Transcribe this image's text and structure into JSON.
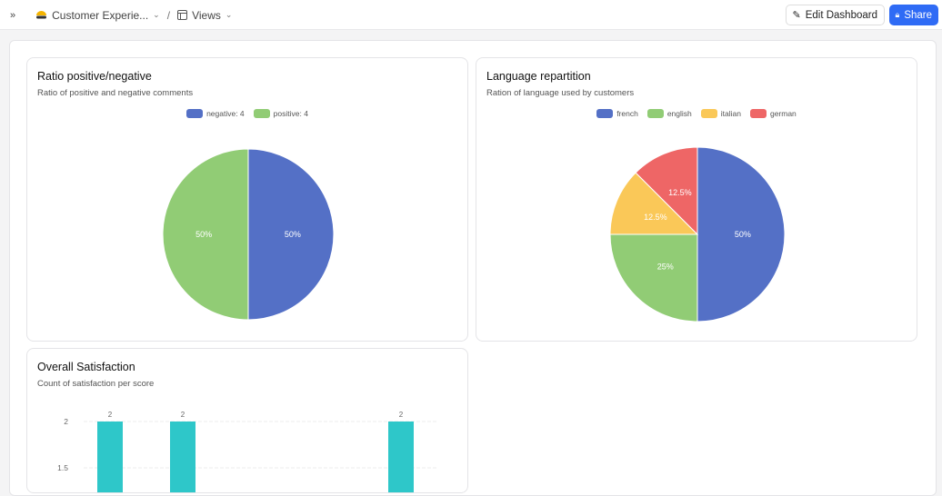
{
  "topbar": {
    "expand_icon": "double-chevron-right",
    "breadcrumb": [
      {
        "label": "Customer Experie...",
        "icon": "base-logo"
      },
      {
        "label": "Views",
        "icon": "table-icon"
      }
    ],
    "separator": "/",
    "edit_label": "Edit Dashboard",
    "share_label": "Share",
    "share_color": "#2f6bf5"
  },
  "cards": [
    {
      "title": "Ratio positive/negative",
      "subtitle": "Ratio of positive and negative comments",
      "chart_data": {
        "type": "pie",
        "legend_position": "top",
        "slices": [
          {
            "label": "negative",
            "legend": "negative: 4",
            "value": 4,
            "percent_label": "50%",
            "color": "#5470c6"
          },
          {
            "label": "positive",
            "legend": "positive: 4",
            "value": 4,
            "percent_label": "50%",
            "color": "#91cc75"
          }
        ]
      }
    },
    {
      "title": "Language repartition",
      "subtitle": "Ration of language used by customers",
      "chart_data": {
        "type": "pie",
        "legend_position": "top",
        "slices": [
          {
            "label": "french",
            "value": 50,
            "percent_label": "50%",
            "color": "#5470c6"
          },
          {
            "label": "english",
            "value": 25,
            "percent_label": "25%",
            "color": "#91cc75"
          },
          {
            "label": "italian",
            "value": 12.5,
            "percent_label": "12.5%",
            "color": "#fac858"
          },
          {
            "label": "german",
            "value": 12.5,
            "percent_label": "12.5%",
            "color": "#ee6666"
          }
        ]
      }
    },
    {
      "title": "Overall Satisfaction",
      "subtitle": "Count of satisfaction per score",
      "chart_data": {
        "type": "bar",
        "color": "#2ec7c9",
        "yticks": [
          "2",
          "1.5"
        ],
        "values": [
          2,
          2,
          null,
          null,
          2
        ],
        "data_labels": [
          "2",
          "2",
          "",
          "",
          "2"
        ],
        "grid": true
      }
    }
  ]
}
